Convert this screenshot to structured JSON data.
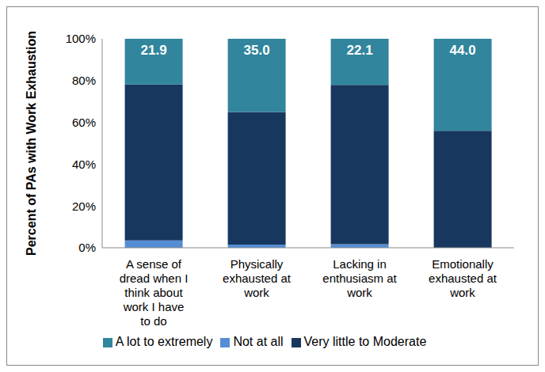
{
  "chart_data": {
    "type": "bar",
    "y_label": "Percent of PAs with Work Exhaustion",
    "categories": [
      "A sense of dread when I think about work I have to do",
      "Physically exhausted at work",
      "Lacking in enthusiasm at work",
      "Emotionally exhausted at work"
    ],
    "series": [
      {
        "name": "Not at all",
        "color": "#558ed5",
        "values": [
          3.5,
          1.5,
          1.7,
          0
        ]
      },
      {
        "name": "Very little to Moderate",
        "color": "#17375e",
        "values": [
          74.6,
          63.5,
          76.2,
          56.0
        ]
      },
      {
        "name": "A lot to extremely",
        "color": "#31859c",
        "values": [
          21.9,
          35.0,
          22.1,
          44.0
        ],
        "value_labels": [
          "21.9",
          "35.0",
          "22.1",
          "44.0"
        ],
        "data_labels": true
      }
    ],
    "ylim": [
      0,
      100
    ],
    "yticks": [
      {
        "value": 0,
        "label": "0%"
      },
      {
        "value": 20,
        "label": "20%"
      },
      {
        "value": 40,
        "label": "40%"
      },
      {
        "value": 60,
        "label": "60%"
      },
      {
        "value": 80,
        "label": "80%"
      },
      {
        "value": 100,
        "label": "100%"
      }
    ],
    "stacked": true,
    "grid": false,
    "legend": "bottom"
  }
}
